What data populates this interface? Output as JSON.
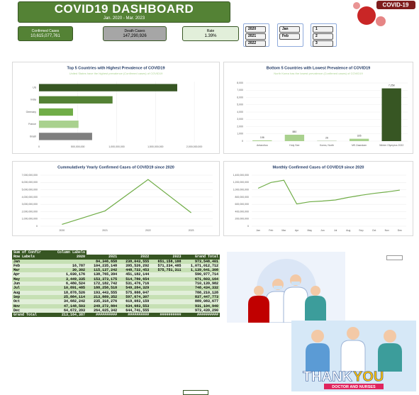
{
  "header": {
    "title": "COVID19  DASHBOARD",
    "subtitle": "Jan. 2020 - Mar. 2023",
    "badge": "COVID-19"
  },
  "kpis": [
    {
      "label": "Confirmed Cases",
      "value": "10,615,077,761"
    },
    {
      "label": "Death Cases",
      "value": "147,290,926"
    },
    {
      "label": "Rate",
      "value": "1.39%"
    }
  ],
  "slicers": [
    [
      "2020",
      "2021",
      "2022"
    ],
    [
      "Jan",
      "Feb"
    ],
    [
      "1",
      "2",
      "3"
    ]
  ],
  "pivot_table": {
    "header": [
      [
        "Sum of Confir",
        "Column Labels"
      ],
      [
        "Row Labels",
        "2020",
        "2021",
        "2022",
        "2023",
        "Grand Total"
      ]
    ],
    "rows": [
      [
        "Jan",
        null,
        "84,346,658",
        "238,043,555",
        "651,158,188",
        "973,548,401"
      ],
      [
        "Feb",
        "16,787",
        "104,235,148",
        "395,526,292",
        "571,234,485",
        "1,071,012,712"
      ],
      [
        "Mar",
        "30,302",
        "115,137,242",
        "448,722,453",
        "575,751,311",
        "1,139,641,308"
      ],
      [
        "Apr",
        "1,030,176",
        "138,765,394",
        "451,182,144",
        null,
        "590,977,714"
      ],
      [
        "May",
        "3,449,335",
        "153,373,175",
        "514,780,654",
        null,
        "671,603,164"
      ],
      [
        "Jun",
        "6,480,524",
        "172,182,742",
        "531,476,716",
        null,
        "710,139,982"
      ],
      [
        "Jul",
        "10,891,485",
        "188,258,518",
        "549,284,329",
        null,
        "748,434,332"
      ],
      [
        "Aug",
        "18,878,526",
        "193,443,555",
        "575,888,047",
        null,
        "788,210,128"
      ],
      [
        "Sep",
        "25,884,114",
        "213,889,352",
        "597,674,307",
        null,
        "837,447,773"
      ],
      [
        "Oct",
        "34,682,242",
        "235,318,276",
        "619,083,159",
        null,
        "889,083,677"
      ],
      [
        "Nov",
        "47,148,503",
        "249,272,884",
        "634,683,553",
        null,
        "931,104,940"
      ],
      [
        "Dec",
        "64,672,393",
        "264,025,342",
        "644,741,555",
        null,
        "973,439,290"
      ],
      [
        "Grand Total",
        "213,164,387",
        "##########",
        "##########",
        "##########",
        "##########"
      ]
    ]
  },
  "images": {
    "thank": "THANK",
    "you": "YOU",
    "caption": "DOCTOR AND NURSES"
  },
  "chart_data": [
    {
      "type": "hbar",
      "title": "Top 5 Countries with Highest Prevalence of COVID19",
      "subtitle": "United States have the highest prevalence (Confirmed cases) of COVID19",
      "categories": [
        "US",
        "India",
        "Germany",
        "France",
        "Brazil"
      ],
      "values": [
        1780000000,
        947000000,
        438000000,
        509000000,
        684000000
      ],
      "colors": [
        "#375623",
        "#548235",
        "#70ad47",
        "#a9d18e",
        "#7f7f7f"
      ],
      "xlim": [
        0,
        2200000000
      ],
      "xticks": [
        0,
        {
          "value": 500000000,
          "label": "500,000,000"
        },
        {
          "value": 1000000000,
          "label": "1,000,000,000"
        },
        {
          "value": 1500000000,
          "label": "1,500,000,000"
        },
        {
          "value": 2000000000,
          "label": "2,000,000,000"
        }
      ],
      "grid": true
    },
    {
      "type": "bar",
      "title": "Bottom 5 Countries with Lowest Prevalence of COVID19",
      "subtitle": "North Korea has the lowest prevalence (Confirmed cases) of COVID19",
      "categories": [
        "Antarctica",
        "Holy See",
        "Korea, North",
        "MS Zaandam",
        "Winter Olympics 2022"
      ],
      "values": [
        106,
        880,
        26,
        326,
        7258
      ],
      "value_labels": [
        "106",
        "880",
        "26",
        "326",
        "7,258"
      ],
      "colors": [
        "#a9d18e",
        "#a9d18e",
        "#548235",
        "#a9d18e",
        "#375623"
      ],
      "ylim": [
        0,
        8000
      ],
      "yticks": [
        0,
        {
          "value": 1000,
          "label": "1,000"
        },
        {
          "value": 2000,
          "label": "2,000"
        },
        {
          "value": 3000,
          "label": "3,000"
        },
        {
          "value": 4000,
          "label": "4,000"
        },
        {
          "value": 5000,
          "label": "5,000"
        },
        {
          "value": 6000,
          "label": "6,000"
        },
        {
          "value": 7000,
          "label": "7,000"
        },
        {
          "value": 8000,
          "label": "8,000"
        }
      ],
      "grid": true
    },
    {
      "type": "line",
      "title": "Cummulatively Yearly Confirmed Cases of COVID19 since 2020",
      "categories": [
        "2020",
        "2021",
        "2022",
        "2023"
      ],
      "values": [
        250000000,
        2100000000,
        6400000000,
        1850000000
      ],
      "color": "#70ad47",
      "ylim": [
        0,
        7000000000
      ],
      "yticks": [
        0,
        {
          "value": 1000000000,
          "label": "1,000,000,000"
        },
        {
          "value": 2000000000,
          "label": "2,000,000,000"
        },
        {
          "value": 3000000000,
          "label": "3,000,000,000"
        },
        {
          "value": 4000000000,
          "label": "4,000,000,000"
        },
        {
          "value": 5000000000,
          "label": "5,000,000,000"
        },
        {
          "value": 6000000000,
          "label": "6,000,000,000"
        },
        {
          "value": 7000000000,
          "label": "7,000,000,000"
        }
      ],
      "grid": true
    },
    {
      "type": "line",
      "title": "Monthly Confirmed Cases of COVID19 since 2020",
      "categories": [
        "Jan",
        "Feb",
        "Mar",
        "Apr",
        "May",
        "Jun",
        "Jul",
        "Aug",
        "Sep",
        "Oct",
        "Nov",
        "Dec"
      ],
      "values": [
        1040000000,
        1200000000,
        1260000000,
        610000000,
        670000000,
        690000000,
        720000000,
        790000000,
        850000000,
        900000000,
        940000000,
        990000000
      ],
      "color": "#70ad47",
      "ylim": [
        0,
        1400000000
      ],
      "yticks": [
        0,
        {
          "value": 200000000,
          "label": "200,000,000"
        },
        {
          "value": 400000000,
          "label": "400,000,000"
        },
        {
          "value": 600000000,
          "label": "600,000,000"
        },
        {
          "value": 800000000,
          "label": "800,000,000"
        },
        {
          "value": 1000000000,
          "label": "1,000,000,000"
        },
        {
          "value": 1200000000,
          "label": "1,200,000,000"
        },
        {
          "value": 1400000000,
          "label": "1,400,000,000"
        }
      ],
      "grid": true
    }
  ]
}
